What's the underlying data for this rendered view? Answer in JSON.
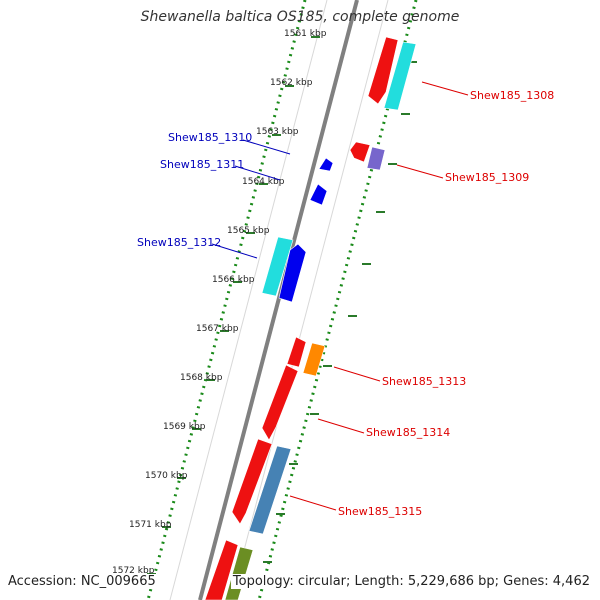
{
  "title": "Shewanella baltica OS185, complete genome",
  "accession": "Accession: NC_009665",
  "topology": "Topology: circular; Length: 5,229,686 bp; Genes: 4,462",
  "colors": {
    "backbone": "#808080",
    "ruler": "#1a8a1a",
    "tick": "#2a7a2a",
    "forward_label": "#dd0000",
    "reverse_label": "#0000bb"
  },
  "ticks": [
    "1561 kbp",
    "1562 kbp",
    "1563 kbp",
    "1564 kbp",
    "1565 kbp",
    "1566 kbp",
    "1567 kbp",
    "1568 kbp",
    "1569 kbp",
    "1570 kbp",
    "1571 kbp",
    "1572 kbp"
  ],
  "gene_labels": [
    {
      "text": "Shew185_1308",
      "strand": "forward"
    },
    {
      "text": "Shew185_1309",
      "strand": "forward"
    },
    {
      "text": "Shew185_1310",
      "strand": "reverse"
    },
    {
      "text": "Shew185_1311",
      "strand": "reverse"
    },
    {
      "text": "Shew185_1312",
      "strand": "reverse"
    },
    {
      "text": "Shew185_1313",
      "strand": "forward"
    },
    {
      "text": "Shew185_1314",
      "strand": "forward"
    },
    {
      "text": "Shew185_1315",
      "strand": "forward"
    }
  ],
  "features": [
    {
      "name": "cds-1308",
      "color": "#ee1111"
    },
    {
      "name": "cog-1308",
      "color": "#22dddd"
    },
    {
      "name": "cds-1309",
      "color": "#ee1111"
    },
    {
      "name": "cog-1309",
      "color": "#7766cc"
    },
    {
      "name": "cds-1310",
      "color": "#0000ee"
    },
    {
      "name": "cds-1311",
      "color": "#0000ee"
    },
    {
      "name": "cds-1312",
      "color": "#0000ee"
    },
    {
      "name": "cog-1312",
      "color": "#22dddd"
    },
    {
      "name": "cds-1313",
      "color": "#ee1111"
    },
    {
      "name": "cog-1313",
      "color": "#ff8800"
    },
    {
      "name": "cds-1314",
      "color": "#ee1111"
    },
    {
      "name": "cds-1315",
      "color": "#ee1111"
    },
    {
      "name": "cog-1315",
      "color": "#4682b4"
    },
    {
      "name": "cds-next",
      "color": "#ee1111"
    },
    {
      "name": "cog-next",
      "color": "#6b8e23"
    }
  ]
}
